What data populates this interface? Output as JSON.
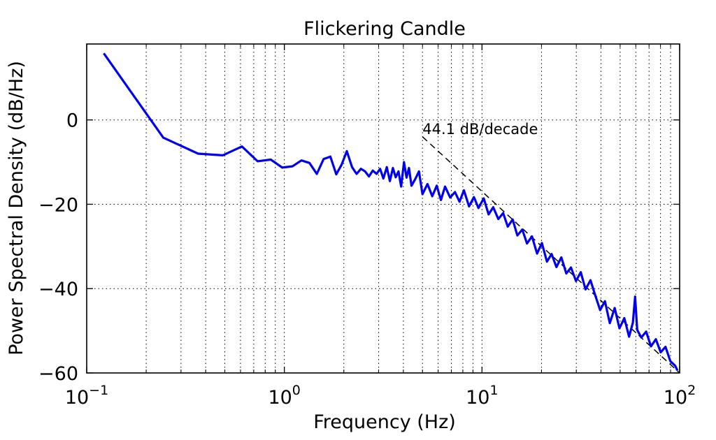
{
  "chart_data": {
    "type": "line",
    "title": "Flickering Candle",
    "xlabel": "Frequency (Hz)",
    "ylabel": "Power Spectral Density (dB/Hz)",
    "xscale": "log",
    "xlim": [
      0.1,
      100
    ],
    "ylim": [
      -60,
      18
    ],
    "grid": true,
    "x_ticks": [
      {
        "base": "10",
        "exp": "−1",
        "value": 0.1
      },
      {
        "base": "10",
        "exp": "0",
        "value": 1
      },
      {
        "base": "10",
        "exp": "1",
        "value": 10
      },
      {
        "base": "10",
        "exp": "2",
        "value": 100
      }
    ],
    "y_ticks": [
      {
        "label": "0",
        "value": 0
      },
      {
        "label": "−20",
        "value": -20
      },
      {
        "label": "−40",
        "value": -40
      },
      {
        "label": "−60",
        "value": -60
      }
    ],
    "series": [
      {
        "color": "#0000ee",
        "x": [
          0.122,
          0.244,
          0.366,
          0.488,
          0.61,
          0.732,
          0.854,
          0.976,
          1.1,
          1.22,
          1.34,
          1.46,
          1.58,
          1.71,
          1.83,
          1.95,
          2.07,
          2.2,
          2.32,
          2.44,
          2.56,
          2.68,
          2.8,
          2.93,
          3.05,
          3.17,
          3.3,
          3.42,
          3.54,
          3.66,
          3.78,
          3.9,
          4.03,
          4.15,
          4.27,
          4.4,
          4.6,
          4.8,
          5.0,
          5.3,
          5.6,
          5.9,
          6.2,
          6.5,
          6.9,
          7.3,
          7.7,
          8.1,
          8.6,
          9.1,
          9.6,
          10.2,
          10.8,
          11.4,
          12.1,
          12.8,
          13.5,
          14.3,
          15.1,
          16.0,
          16.9,
          17.9,
          19.0,
          20.1,
          21.3,
          22.5,
          23.8,
          25.2,
          26.7,
          28.2,
          29.9,
          31.6,
          33.4,
          35.4,
          37.4,
          39.6,
          41.9,
          44.3,
          46.9,
          49.6,
          52.5,
          55.5,
          58.0,
          59.5,
          61.0,
          64.0,
          67.7,
          71.6,
          75.8,
          80.2,
          84.8,
          89.7,
          94.9,
          97.5
        ],
        "y": [
          15.8,
          -4.2,
          -8.0,
          -8.4,
          -6.3,
          -9.8,
          -9.4,
          -11.3,
          -11.0,
          -9.6,
          -10.2,
          -12.8,
          -9.3,
          -8.7,
          -12.9,
          -10.6,
          -7.4,
          -11.2,
          -12.8,
          -11.6,
          -12.2,
          -13.4,
          -12.0,
          -12.8,
          -11.6,
          -13.9,
          -11.2,
          -14.5,
          -11.4,
          -13.6,
          -12.2,
          -15.8,
          -10.0,
          -13.7,
          -11.4,
          -15.6,
          -14.0,
          -12.2,
          -17.6,
          -15.2,
          -18.1,
          -15.6,
          -19.0,
          -15.8,
          -18.4,
          -17.1,
          -19.4,
          -16.7,
          -20.5,
          -18.3,
          -20.9,
          -18.6,
          -22.4,
          -20.7,
          -23.5,
          -22.1,
          -25.3,
          -23.6,
          -27.4,
          -26.0,
          -29.3,
          -27.6,
          -31.7,
          -29.2,
          -33.6,
          -31.8,
          -34.9,
          -32.6,
          -36.4,
          -35.0,
          -38.2,
          -36.1,
          -40.2,
          -38.0,
          -41.6,
          -45.1,
          -43.0,
          -48.2,
          -44.6,
          -49.4,
          -47.0,
          -51.4,
          -48.1,
          -41.9,
          -49.8,
          -51.6,
          -50.2,
          -53.7,
          -52.0,
          -55.1,
          -53.8,
          -57.2,
          -58.3,
          -59.4
        ]
      }
    ],
    "annotation": {
      "text": "44.1 dB/decade",
      "x1": 5,
      "y1": -4,
      "x2": 100,
      "y2": -61.4
    }
  }
}
